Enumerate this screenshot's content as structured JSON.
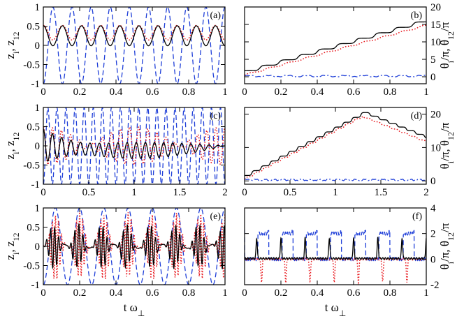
{
  "chart_data": [
    {
      "type": "line",
      "panel_label": "(a)",
      "xlim": [
        0,
        1
      ],
      "ylim": [
        -1,
        1
      ],
      "xticks": [
        "0",
        "0.2",
        "0.4",
        "0.6",
        "0.8",
        "1"
      ],
      "yticks": [
        "-1",
        "-0.5",
        "0",
        "0.5",
        "1"
      ],
      "ylabel": "z_i, z_12",
      "xlabel": "",
      "series": [
        {
          "name": "z_1",
          "color": "#1f3fd8",
          "style": "dashed",
          "model": "cos",
          "mean": 0,
          "amp": 1,
          "freq": 9.5,
          "phase": 3.14
        },
        {
          "name": "z_2",
          "color": "#e8191e",
          "style": "dotted",
          "model": "cos",
          "mean": 0.33,
          "amp": 0.19,
          "freq": 9.5,
          "phase": 0
        },
        {
          "name": "z_12",
          "color": "#000000",
          "style": "solid",
          "model": "cos",
          "mean": 0.25,
          "amp": 0.26,
          "freq": 9.5,
          "phase": 0
        }
      ]
    },
    {
      "type": "line",
      "panel_label": "(b)",
      "xlim": [
        0,
        1
      ],
      "ylim": [
        -2,
        20
      ],
      "xticks": [
        "0",
        "0.2",
        "0.4",
        "0.6",
        "0.8",
        "1"
      ],
      "yticks": [
        "0",
        "5",
        "10",
        "15",
        "20"
      ],
      "ylabel": "θ_i/π, θ_12/π",
      "xlabel": "",
      "series": [
        {
          "name": "θ_1",
          "color": "#1f3fd8",
          "style": "dashdot",
          "model": "small",
          "mean": 0.2,
          "amp": 0.4,
          "freq": 9.5,
          "phase": 0
        },
        {
          "name": "θ_2",
          "color": "#e8191e",
          "style": "dotted",
          "model": "steps",
          "start": 0.5,
          "step": 1.5,
          "freq": 9.5,
          "phase": 0.55,
          "sharp": 4
        },
        {
          "name": "θ_12",
          "color": "#000000",
          "style": "solid",
          "model": "steps",
          "start": 1.3,
          "step": 1.55,
          "freq": 9.5,
          "phase": 0.3,
          "sharp": 8
        }
      ]
    },
    {
      "type": "line",
      "panel_label": "(c)",
      "xlim": [
        0,
        2
      ],
      "ylim": [
        -1,
        1
      ],
      "xticks": [
        "0",
        "0.5",
        "1",
        "1.5",
        "2"
      ],
      "yticks": [
        "-1",
        "-0.5",
        "0",
        "0.5",
        "1"
      ],
      "ylabel": "z_i, z_12",
      "xlabel": "",
      "series": [
        {
          "name": "z_1",
          "color": "#1f3fd8",
          "style": "dashed",
          "model": "cos",
          "mean": 0,
          "amp": 1,
          "freq": 10,
          "phase": 3.14
        },
        {
          "name": "z_2",
          "color": "#e8191e",
          "style": "dotted",
          "model": "beat",
          "amp": 0.55,
          "freq": 10,
          "beat": 0.5
        },
        {
          "name": "z_12",
          "color": "#000000",
          "style": "solid",
          "model": "decay",
          "amp": 0.45,
          "freq": 10,
          "tau": 0.35,
          "drift": -0.12
        }
      ]
    },
    {
      "type": "line",
      "panel_label": "(d)",
      "xlim": [
        0,
        2
      ],
      "ylim": [
        -1,
        22
      ],
      "xticks": [
        "0",
        "0.5",
        "1",
        "1.5",
        "2"
      ],
      "yticks": [
        "0",
        "10",
        "20"
      ],
      "ylabel": "θ_i/π, θ_12/π",
      "xlabel": "",
      "series": [
        {
          "name": "θ_1",
          "color": "#1f3fd8",
          "style": "dashdot",
          "model": "small",
          "mean": 0.3,
          "amp": 0.4,
          "freq": 10,
          "phase": 0
        },
        {
          "name": "θ_2",
          "color": "#e8191e",
          "style": "dotted",
          "model": "peak",
          "start": 0.5,
          "step": 1.45,
          "freq": 10,
          "phase": 0.5,
          "sharp": 5,
          "turn": 1.3
        },
        {
          "name": "θ_12",
          "color": "#000000",
          "style": "solid",
          "model": "peak",
          "start": 1.2,
          "step": 1.45,
          "freq": 10,
          "phase": 0.3,
          "sharp": 8,
          "turn": 1.32
        }
      ]
    },
    {
      "type": "line",
      "panel_label": "(e)",
      "xlim": [
        0,
        1
      ],
      "ylim": [
        -1,
        1
      ],
      "xticks": [
        "0",
        "0.2",
        "0.4",
        "0.6",
        "0.8",
        "1"
      ],
      "yticks": [
        "-1",
        "-0.5",
        "0",
        "0.5",
        "1"
      ],
      "ylabel": "z_i, z_12",
      "xlabel": "t ω_⊥",
      "series": [
        {
          "name": "z_1",
          "color": "#1f3fd8",
          "style": "dashed",
          "model": "cos",
          "mean": 0,
          "amp": 1,
          "freq": 7.5,
          "phase": 3.14
        },
        {
          "name": "z_2",
          "color": "#e8191e",
          "style": "dotted",
          "model": "burst",
          "amp": 0.85,
          "freq": 7.5,
          "inner": 60,
          "phase": 0
        },
        {
          "name": "z_12",
          "color": "#000000",
          "style": "solid",
          "model": "burst",
          "amp": 0.55,
          "freq": 7.5,
          "inner": 45,
          "phase": 1.2
        }
      ]
    },
    {
      "type": "line",
      "panel_label": "(f)",
      "xlim": [
        0,
        1
      ],
      "ylim": [
        -2,
        4
      ],
      "xticks": [
        "0",
        "0.2",
        "0.4",
        "0.6",
        "0.8",
        "1"
      ],
      "yticks": [
        "-2",
        "0",
        "2",
        "4"
      ],
      "ylabel": "θ_i/π, θ_12/π",
      "xlabel": "t ω_⊥",
      "series": [
        {
          "name": "θ_1",
          "color": "#1f3fd8",
          "style": "dashed",
          "model": "square",
          "low": 0,
          "high": 2.0,
          "freq": 7.5,
          "duty": 0.45,
          "phase": 0.55
        },
        {
          "name": "θ_2",
          "color": "#e8191e",
          "style": "dotted",
          "model": "spike",
          "base": 0,
          "amp": -1.8,
          "freq": 7.5,
          "phase": 0.7,
          "width": 0.05
        },
        {
          "name": "θ_12",
          "color": "#000000",
          "style": "solid",
          "model": "spike",
          "base": 0.05,
          "amp": 1.6,
          "freq": 7.5,
          "phase": 0.5,
          "width": 0.05
        }
      ]
    }
  ]
}
